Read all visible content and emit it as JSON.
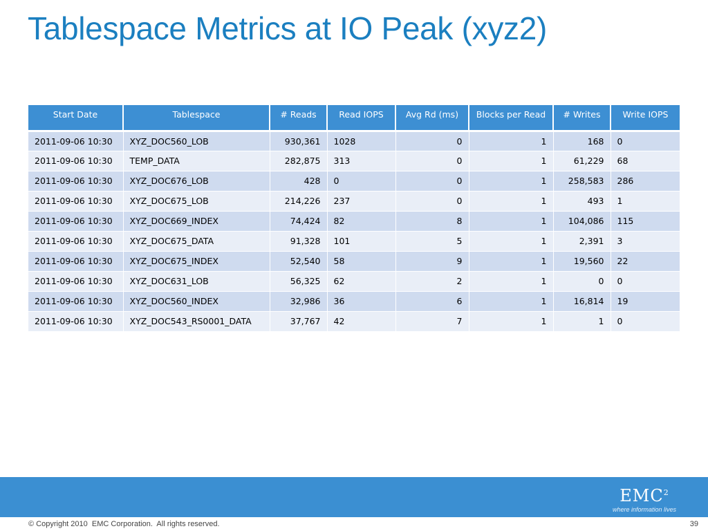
{
  "title": "Tablespace Metrics at IO Peak (xyz2)",
  "table": {
    "headers": [
      "Start Date",
      "Tablespace",
      "# Reads",
      "Read IOPS",
      "Avg Rd (ms)",
      "Blocks per Read",
      "# Writes",
      "Write IOPS"
    ],
    "rows": [
      [
        "2011-09-06 10:30",
        "XYZ_DOC560_LOB",
        "930,361",
        "1028",
        "0",
        "1",
        "168",
        "0"
      ],
      [
        "2011-09-06 10:30",
        "TEMP_DATA",
        "282,875",
        "313",
        "0",
        "1",
        "61,229",
        "68"
      ],
      [
        "2011-09-06 10:30",
        "XYZ_DOC676_LOB",
        "428",
        "0",
        "0",
        "1",
        "258,583",
        "286"
      ],
      [
        "2011-09-06 10:30",
        "XYZ_DOC675_LOB",
        "214,226",
        "237",
        "0",
        "1",
        "493",
        "1"
      ],
      [
        "2011-09-06 10:30",
        "XYZ_DOC669_INDEX",
        "74,424",
        "82",
        "8",
        "1",
        "104,086",
        "115"
      ],
      [
        "2011-09-06 10:30",
        "XYZ_DOC675_DATA",
        "91,328",
        "101",
        "5",
        "1",
        "2,391",
        "3"
      ],
      [
        "2011-09-06 10:30",
        "XYZ_DOC675_INDEX",
        "52,540",
        "58",
        "9",
        "1",
        "19,560",
        "22"
      ],
      [
        "2011-09-06 10:30",
        "XYZ_DOC631_LOB",
        "56,325",
        "62",
        "2",
        "1",
        "0",
        "0"
      ],
      [
        "2011-09-06 10:30",
        "XYZ_DOC560_INDEX",
        "32,986",
        "36",
        "6",
        "1",
        "16,814",
        "19"
      ],
      [
        "2011-09-06 10:30",
        "XYZ_DOC543_RS0001_DATA",
        "37,767",
        "42",
        "7",
        "1",
        "1",
        "0"
      ]
    ]
  },
  "logo": {
    "text": "EMC",
    "superscript": "2",
    "tagline": "where information lives"
  },
  "footer": {
    "copyright": "© Copyright 2010  EMC Corporation.  All rights reserved.",
    "page_number": "39"
  },
  "colors": {
    "title": "#1b7fc0",
    "header_bg": "#3d8fd3",
    "row_odd": "#cfdbef",
    "row_even": "#e9eef7",
    "footer_band": "#3b8fd2"
  }
}
